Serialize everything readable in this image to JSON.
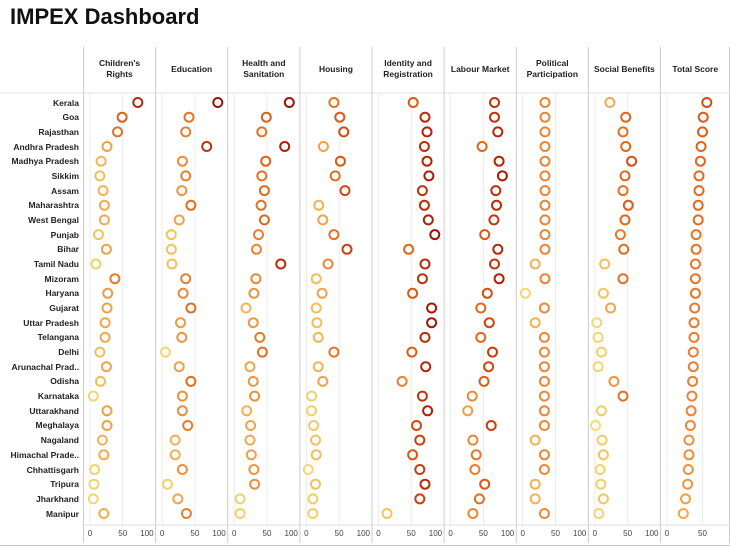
{
  "title": "IMPEX Dashboard",
  "axis": {
    "tick_labels": [
      "0",
      "50",
      "100"
    ],
    "last_panel_tick_labels": [
      "0",
      "50"
    ]
  },
  "colors": {
    "background": "#ffffff",
    "title_text": "#111111",
    "header_text": "#222222",
    "row_label_text": "#222222",
    "tick_text": "#444444",
    "panel_separator": "#cccccc",
    "gridline": "#ececec",
    "axis_line": "#dddddd",
    "plot_top_line": "#e0e0e0",
    "bottom_border": "#c4c4c4",
    "circle_fill": "#ffffff",
    "scale_stops": [
      {
        "v": 0,
        "c": "#F3DC7E"
      },
      {
        "v": 10,
        "c": "#F0CF66"
      },
      {
        "v": 18,
        "c": "#F2B655"
      },
      {
        "v": 26,
        "c": "#F0A04A"
      },
      {
        "v": 34,
        "c": "#EA8538"
      },
      {
        "v": 44,
        "c": "#E26D20"
      },
      {
        "v": 52,
        "c": "#DA5A14"
      },
      {
        "v": 60,
        "c": "#CD4410"
      },
      {
        "v": 70,
        "c": "#BA2D0C"
      },
      {
        "v": 80,
        "c": "#A11908"
      },
      {
        "v": 90,
        "c": "#8E1006"
      }
    ]
  },
  "chart_data": {
    "type": "scatter",
    "title": "IMPEX Dashboard",
    "xlim": [
      0,
      100
    ],
    "ticks": [
      0,
      50,
      100
    ],
    "grid": true,
    "columns": [
      "Children's Rights",
      "Education",
      "Health and Sanitation",
      "Housing",
      "Identity and Registration",
      "Labour Market",
      "Political Participation",
      "Social Benefits",
      "Total Score"
    ],
    "rows": [
      {
        "state": "Kerala",
        "scores": [
          73,
          85,
          84,
          42,
          53,
          67,
          34,
          23,
          56
        ]
      },
      {
        "state": "Goa",
        "scores": [
          49,
          41,
          49,
          51,
          71,
          67,
          34,
          47,
          51
        ]
      },
      {
        "state": "Rajasthan",
        "scores": [
          42,
          36,
          42,
          57,
          74,
          72,
          34,
          43,
          50
        ]
      },
      {
        "state": "Andhra Pradesh",
        "scores": [
          26,
          68,
          77,
          26,
          70,
          48,
          34,
          47,
          48
        ]
      },
      {
        "state": "Madhya Pradesh",
        "scores": [
          17,
          31,
          48,
          52,
          74,
          74,
          34,
          56,
          47
        ]
      },
      {
        "state": "Sikkim",
        "scores": [
          15,
          36,
          42,
          44,
          77,
          79,
          34,
          46,
          45
        ]
      },
      {
        "state": "Assam",
        "scores": [
          20,
          30,
          46,
          59,
          67,
          69,
          34,
          43,
          45
        ]
      },
      {
        "state": "Maharashtra",
        "scores": [
          22,
          44,
          41,
          19,
          70,
          70,
          34,
          51,
          44
        ]
      },
      {
        "state": "West Bengal",
        "scores": [
          22,
          26,
          46,
          25,
          76,
          66,
          34,
          46,
          44
        ]
      },
      {
        "state": "Punjab",
        "scores": [
          13,
          14,
          37,
          42,
          86,
          52,
          34,
          39,
          41
        ]
      },
      {
        "state": "Bihar",
        "scores": [
          25,
          14,
          34,
          62,
          46,
          72,
          34,
          44,
          41
        ]
      },
      {
        "state": "Tamil Nadu",
        "scores": [
          9,
          15,
          71,
          33,
          71,
          67,
          19,
          15,
          40
        ]
      },
      {
        "state": "Mizoram",
        "scores": [
          38,
          36,
          33,
          15,
          67,
          74,
          34,
          43,
          40
        ]
      },
      {
        "state": "Haryana",
        "scores": [
          27,
          32,
          30,
          24,
          52,
          56,
          4,
          13,
          40
        ]
      },
      {
        "state": "Gujarat",
        "scores": [
          26,
          44,
          18,
          15,
          81,
          46,
          33,
          24,
          39
        ]
      },
      {
        "state": "Uttar Pradesh",
        "scores": [
          23,
          28,
          29,
          16,
          81,
          59,
          19,
          3,
          38
        ]
      },
      {
        "state": "Telangana",
        "scores": [
          23,
          30,
          39,
          18,
          71,
          46,
          33,
          5,
          38
        ]
      },
      {
        "state": "Delhi",
        "scores": [
          15,
          5,
          43,
          42,
          51,
          64,
          33,
          10,
          37
        ]
      },
      {
        "state": "Arunachal Prad..",
        "scores": [
          25,
          26,
          24,
          18,
          72,
          58,
          33,
          5,
          37
        ]
      },
      {
        "state": "Odisha",
        "scores": [
          16,
          44,
          29,
          25,
          36,
          51,
          33,
          29,
          36
        ]
      },
      {
        "state": "Karnataka",
        "scores": [
          5,
          31,
          31,
          8,
          67,
          33,
          33,
          43,
          35
        ]
      },
      {
        "state": "Uttarakhand",
        "scores": [
          26,
          31,
          19,
          8,
          75,
          26,
          33,
          10,
          34
        ]
      },
      {
        "state": "Meghalaya",
        "scores": [
          26,
          39,
          25,
          11,
          58,
          62,
          33,
          1,
          33
        ]
      },
      {
        "state": "Nagaland",
        "scores": [
          19,
          20,
          24,
          14,
          63,
          34,
          19,
          11,
          31
        ]
      },
      {
        "state": "Himachal Prade..",
        "scores": [
          21,
          20,
          26,
          15,
          52,
          39,
          33,
          13,
          31
        ]
      },
      {
        "state": "Chhattisgarh",
        "scores": [
          7,
          31,
          30,
          3,
          63,
          37,
          33,
          8,
          30
        ]
      },
      {
        "state": "Tripura",
        "scores": [
          6,
          8,
          31,
          14,
          71,
          52,
          19,
          9,
          29
        ]
      },
      {
        "state": "Jharkhand",
        "scores": [
          5,
          24,
          9,
          10,
          63,
          44,
          19,
          13,
          26
        ]
      },
      {
        "state": "Manipur",
        "scores": [
          21,
          37,
          9,
          10,
          13,
          34,
          33,
          6,
          23
        ]
      }
    ]
  }
}
